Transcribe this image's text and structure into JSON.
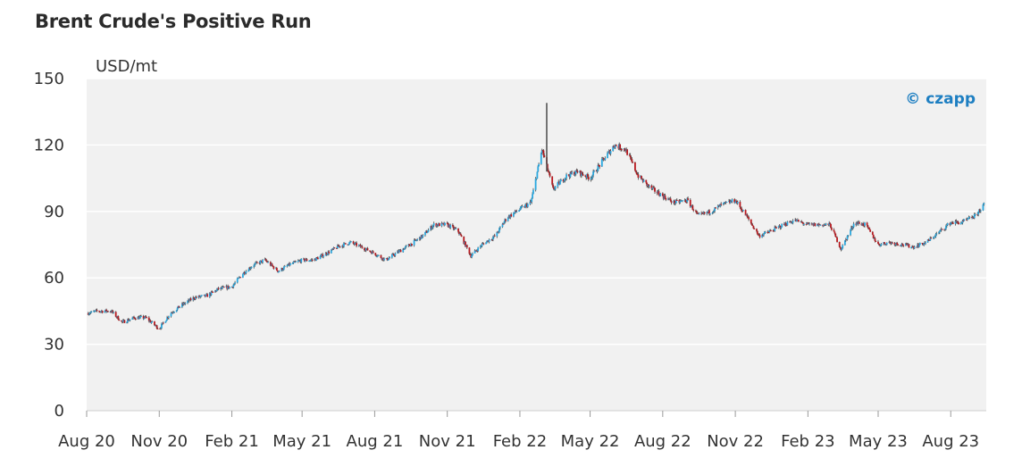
{
  "colors": {
    "plot_background": "#f1f1f1",
    "gridline": "#ffffff",
    "up_candle": "#29a8e0",
    "down_candle": "#b8191f",
    "wick": "#555555",
    "credit": "#1e7fc2"
  },
  "chart_data": {
    "type": "candlestick",
    "title": "Brent Crude's Positive Run",
    "ylabel": "USD/mt",
    "credit": "© czapp",
    "ylim": [
      0,
      150
    ],
    "y_ticks": [
      0,
      30,
      60,
      90,
      120,
      150
    ],
    "grid": true,
    "x_ticks": [
      "Aug 20",
      "Nov 20",
      "Feb 21",
      "May 21",
      "Aug 21",
      "Nov 21",
      "Feb 22",
      "May 22",
      "Aug 22",
      "Nov 22",
      "Feb 23",
      "May 23",
      "Aug 23"
    ],
    "x_range": [
      "2020-08-01",
      "2023-09-15"
    ],
    "close_path": [
      [
        "2020-08-01",
        44
      ],
      [
        "2020-08-15",
        45
      ],
      [
        "2020-09-01",
        45
      ],
      [
        "2020-09-15",
        40
      ],
      [
        "2020-10-01",
        42
      ],
      [
        "2020-10-15",
        42
      ],
      [
        "2020-11-01",
        37
      ],
      [
        "2020-11-15",
        44
      ],
      [
        "2020-12-01",
        48
      ],
      [
        "2020-12-15",
        51
      ],
      [
        "2021-01-01",
        52
      ],
      [
        "2021-01-15",
        55
      ],
      [
        "2021-02-01",
        56
      ],
      [
        "2021-02-15",
        62
      ],
      [
        "2021-03-01",
        66
      ],
      [
        "2021-03-15",
        68
      ],
      [
        "2021-04-01",
        63
      ],
      [
        "2021-04-15",
        66
      ],
      [
        "2021-05-01",
        68
      ],
      [
        "2021-05-15",
        68
      ],
      [
        "2021-06-01",
        71
      ],
      [
        "2021-06-15",
        74
      ],
      [
        "2021-07-01",
        76
      ],
      [
        "2021-07-15",
        74
      ],
      [
        "2021-08-01",
        71
      ],
      [
        "2021-08-15",
        68
      ],
      [
        "2021-09-01",
        72
      ],
      [
        "2021-09-15",
        75
      ],
      [
        "2021-10-01",
        79
      ],
      [
        "2021-10-15",
        84
      ],
      [
        "2021-11-01",
        84
      ],
      [
        "2021-11-15",
        81
      ],
      [
        "2021-12-01",
        70
      ],
      [
        "2021-12-15",
        75
      ],
      [
        "2022-01-01",
        79
      ],
      [
        "2022-01-15",
        87
      ],
      [
        "2022-02-01",
        91
      ],
      [
        "2022-02-15",
        94
      ],
      [
        "2022-03-01",
        118
      ],
      [
        "2022-03-15",
        100
      ],
      [
        "2022-04-01",
        106
      ],
      [
        "2022-04-15",
        108
      ],
      [
        "2022-05-01",
        105
      ],
      [
        "2022-05-15",
        112
      ],
      [
        "2022-06-01",
        120
      ],
      [
        "2022-06-15",
        118
      ],
      [
        "2022-07-01",
        106
      ],
      [
        "2022-07-15",
        101
      ],
      [
        "2022-08-01",
        97
      ],
      [
        "2022-08-15",
        94
      ],
      [
        "2022-09-01",
        95
      ],
      [
        "2022-09-15",
        88
      ],
      [
        "2022-10-01",
        90
      ],
      [
        "2022-10-15",
        93
      ],
      [
        "2022-11-01",
        95
      ],
      [
        "2022-11-15",
        88
      ],
      [
        "2022-12-01",
        79
      ],
      [
        "2022-12-15",
        81
      ],
      [
        "2023-01-01",
        84
      ],
      [
        "2023-01-15",
        86
      ],
      [
        "2023-02-01",
        84
      ],
      [
        "2023-02-15",
        84
      ],
      [
        "2023-03-01",
        84
      ],
      [
        "2023-03-15",
        73
      ],
      [
        "2023-04-01",
        85
      ],
      [
        "2023-04-15",
        84
      ],
      [
        "2023-05-01",
        75
      ],
      [
        "2023-05-15",
        76
      ],
      [
        "2023-06-01",
        75
      ],
      [
        "2023-06-15",
        74
      ],
      [
        "2023-07-01",
        76
      ],
      [
        "2023-07-15",
        80
      ],
      [
        "2023-08-01",
        85
      ],
      [
        "2023-08-15",
        85
      ],
      [
        "2023-09-01",
        88
      ],
      [
        "2023-09-12",
        93
      ]
    ],
    "spikes": [
      {
        "date": "2022-03-07",
        "high": 139
      }
    ]
  }
}
